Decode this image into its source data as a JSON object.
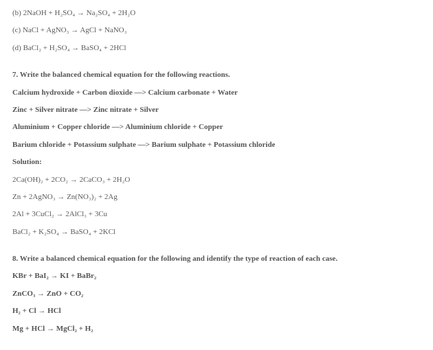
{
  "eq_b": "(b) 2NaOH + H₂SO₄ → Na₂SO₄ + 2H₂O",
  "eq_c": "(c) NaCl + AgNO₃ → AgCl + NaNO₃",
  "eq_d": "(d) BaCl₂ + H₂SO₄ → BaSO₄ + 2HCl",
  "q7_title": "7. Write the balanced chemical equation for the following reactions.",
  "q7_r1": "Calcium hydroxide + Carbon dioxide —> Calcium carbonate + Water",
  "q7_r2": "Zinc + Silver nitrate —> Zinc nitrate + Silver",
  "q7_r3": "Aluminium + Copper chloride —> Aluminium chloride + Copper",
  "q7_r4": "Barium chloride + Potassium sulphate —> Barium sulphate + Potassium chloride",
  "solution_label": "Solution:",
  "q7_s1": "2Ca(OH)₂ + 2CO₂ → 2CaCO₃ + 2H₂O",
  "q7_s2": "Zn + 2AgNO₃ → Zn(NO₃)₂ + 2Ag",
  "q7_s3": "2Al + 3CuCl₂ → 2AlCl₃ + 3Cu",
  "q7_s4": "BaCl₂ + K₂SO₄ → BaSO₄ + 2KCl",
  "q8_title": "8. Write a balanced chemical equation for the following and identify the type of reaction of each case.",
  "q8_r1": "KBr + BaI₂ → KI + BaBr₂",
  "q8_r2": "ZnCO₃ → ZnO + CO₂",
  "q8_r3": "H₂ + Cl → HCl",
  "q8_r4": "Mg + HCl → MgCl₂ + H₂"
}
